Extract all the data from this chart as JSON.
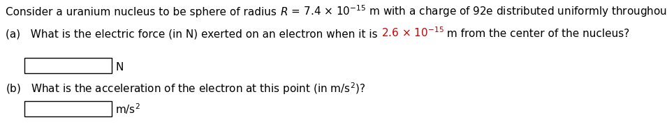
{
  "background_color": "#ffffff",
  "line1": "Consider a uranium nucleus to be sphere of radius $R$ = 7.4 × 10$^{-15}$ m with a charge of 92e distributed uniformly throughout its volume.",
  "line2_pre": "What is the electric force (in N) exerted on an electron when it is ",
  "line2_red": "2.6 × 10$^{-15}$",
  "line2_post": " m from the center of the nucleus?",
  "line2_label": "(a)   ",
  "line3": "(b)   What is the acceleration of the electron at this point (in m/s$^{2}$)?",
  "unit_a": "N",
  "unit_b": "m/s$^{2}$",
  "fontsize": 11.0,
  "red_color": "#cc0000",
  "black_color": "#000000",
  "box_facecolor": "#ffffff",
  "box_edgecolor": "#000000"
}
